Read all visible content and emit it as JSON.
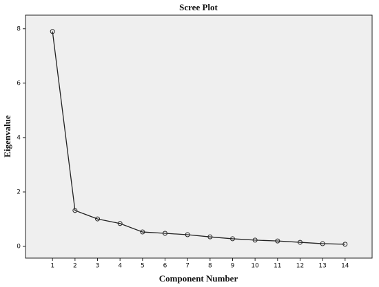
{
  "chart_data": {
    "type": "line",
    "title": "Scree Plot",
    "x_label": "Component Number",
    "y_label": "Eigenvalue",
    "x": [
      1,
      2,
      3,
      4,
      5,
      6,
      7,
      8,
      9,
      10,
      11,
      12,
      13,
      14
    ],
    "values": [
      7.9,
      1.32,
      1.01,
      0.84,
      0.53,
      0.48,
      0.43,
      0.35,
      0.28,
      0.23,
      0.2,
      0.15,
      0.1,
      0.08
    ],
    "color": "#222222",
    "xlim": [
      -0.2,
      15.2
    ],
    "xticks": [
      1,
      2,
      3,
      4,
      5,
      6,
      7,
      8,
      9,
      10,
      11,
      12,
      13,
      14
    ],
    "ylim": [
      -0.43,
      8.5
    ],
    "yticks": [
      0,
      2,
      4,
      6,
      8
    ]
  }
}
